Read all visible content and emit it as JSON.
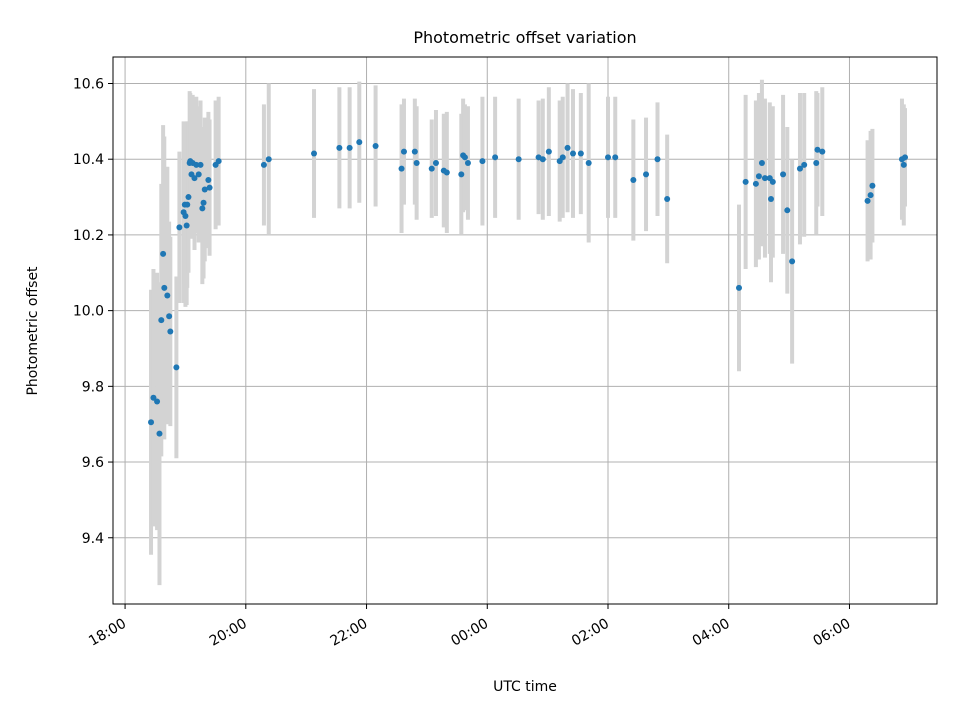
{
  "chart_data": {
    "type": "scatter",
    "title": "Photometric offset variation",
    "xlabel": "UTC time",
    "ylabel": "Photometric offset",
    "x_tick_labels": [
      "18:00",
      "20:00",
      "22:00",
      "00:00",
      "02:00",
      "04:00",
      "06:00"
    ],
    "x_tick_hours": [
      18,
      20,
      22,
      24,
      26,
      28,
      30
    ],
    "xlim_hours": [
      17.8,
      31.45
    ],
    "y_ticks": [
      9.4,
      9.6,
      9.8,
      10.0,
      10.2,
      10.4,
      10.6
    ],
    "y_tick_labels": [
      "9.4",
      "9.6",
      "9.8",
      "10.0",
      "10.2",
      "10.4",
      "10.6"
    ],
    "ylim": [
      9.225,
      10.67
    ],
    "grid": true,
    "error_bar_color": "#d3d3d3",
    "marker_color": "#1f77b4",
    "series": [
      {
        "values": [
          [
            18.43,
            9.705,
            0.35
          ],
          [
            18.47,
            9.77,
            0.34
          ],
          [
            18.53,
            9.76,
            0.34
          ],
          [
            18.57,
            9.675,
            0.4
          ],
          [
            18.6,
            9.975,
            0.36
          ],
          [
            18.65,
            10.06,
            0.4
          ],
          [
            18.63,
            10.15,
            0.34
          ],
          [
            18.7,
            10.04,
            0.34
          ],
          [
            18.73,
            9.985,
            0.25
          ],
          [
            18.75,
            9.945,
            0.25
          ],
          [
            18.85,
            9.85,
            0.24
          ],
          [
            18.9,
            10.22,
            0.2
          ],
          [
            18.97,
            10.26,
            0.24
          ],
          [
            18.99,
            10.28,
            0.21
          ],
          [
            19.0,
            10.25,
            0.24
          ],
          [
            19.02,
            10.225,
            0.21
          ],
          [
            19.03,
            10.28,
            0.22
          ],
          [
            19.05,
            10.3,
            0.2
          ],
          [
            19.07,
            10.39,
            0.19
          ],
          [
            19.08,
            10.395,
            0.18
          ],
          [
            19.1,
            10.36,
            0.17
          ],
          [
            19.12,
            10.39,
            0.18
          ],
          [
            19.15,
            10.35,
            0.19
          ],
          [
            19.18,
            10.385,
            0.18
          ],
          [
            19.22,
            10.36,
            0.18
          ],
          [
            19.25,
            10.385,
            0.17
          ],
          [
            19.28,
            10.27,
            0.2
          ],
          [
            19.32,
            10.32,
            0.19
          ],
          [
            19.3,
            10.285,
            0.2
          ],
          [
            19.38,
            10.345,
            0.18
          ],
          [
            19.4,
            10.325,
            0.18
          ],
          [
            19.5,
            10.385,
            0.17
          ],
          [
            19.55,
            10.395,
            0.17
          ],
          [
            20.3,
            10.385,
            0.16
          ],
          [
            20.38,
            10.4,
            0.2
          ],
          [
            21.13,
            10.415,
            0.17
          ],
          [
            21.55,
            10.43,
            0.16
          ],
          [
            21.72,
            10.43,
            0.16
          ],
          [
            21.88,
            10.445,
            0.16
          ],
          [
            22.15,
            10.435,
            0.16
          ],
          [
            22.58,
            10.375,
            0.17
          ],
          [
            22.62,
            10.42,
            0.14
          ],
          [
            22.8,
            10.42,
            0.14
          ],
          [
            22.83,
            10.39,
            0.15
          ],
          [
            23.08,
            10.375,
            0.13
          ],
          [
            23.15,
            10.39,
            0.14
          ],
          [
            23.28,
            10.37,
            0.15
          ],
          [
            23.33,
            10.365,
            0.16
          ],
          [
            23.57,
            10.36,
            0.16
          ],
          [
            23.6,
            10.41,
            0.15
          ],
          [
            23.63,
            10.405,
            0.14
          ],
          [
            23.68,
            10.39,
            0.15
          ],
          [
            23.92,
            10.395,
            0.17
          ],
          [
            24.13,
            10.405,
            0.16
          ],
          [
            24.52,
            10.4,
            0.16
          ],
          [
            24.85,
            10.405,
            0.15
          ],
          [
            24.92,
            10.4,
            0.16
          ],
          [
            25.02,
            10.42,
            0.17
          ],
          [
            25.2,
            10.395,
            0.16
          ],
          [
            25.25,
            10.405,
            0.16
          ],
          [
            25.33,
            10.43,
            0.17
          ],
          [
            25.42,
            10.415,
            0.17
          ],
          [
            25.55,
            10.415,
            0.16
          ],
          [
            25.68,
            10.39,
            0.21
          ],
          [
            26.0,
            10.405,
            0.16
          ],
          [
            26.12,
            10.405,
            0.16
          ],
          [
            26.42,
            10.345,
            0.16
          ],
          [
            26.63,
            10.36,
            0.15
          ],
          [
            26.82,
            10.4,
            0.15
          ],
          [
            26.98,
            10.295,
            0.17
          ],
          [
            28.17,
            10.06,
            0.22
          ],
          [
            28.28,
            10.34,
            0.23
          ],
          [
            28.45,
            10.335,
            0.22
          ],
          [
            28.5,
            10.355,
            0.22
          ],
          [
            28.55,
            10.39,
            0.22
          ],
          [
            28.6,
            10.35,
            0.21
          ],
          [
            28.68,
            10.35,
            0.2
          ],
          [
            28.7,
            10.295,
            0.22
          ],
          [
            28.73,
            10.34,
            0.2
          ],
          [
            28.9,
            10.36,
            0.21
          ],
          [
            28.97,
            10.265,
            0.22
          ],
          [
            29.05,
            10.13,
            0.27
          ],
          [
            29.18,
            10.375,
            0.2
          ],
          [
            29.25,
            10.385,
            0.19
          ],
          [
            29.45,
            10.39,
            0.19
          ],
          [
            29.47,
            10.425,
            0.15
          ],
          [
            29.55,
            10.42,
            0.17
          ],
          [
            30.3,
            10.29,
            0.16
          ],
          [
            30.35,
            10.305,
            0.17
          ],
          [
            30.38,
            10.33,
            0.15
          ],
          [
            30.87,
            10.4,
            0.16
          ],
          [
            30.9,
            10.385,
            0.16
          ],
          [
            30.92,
            10.405,
            0.13
          ]
        ]
      }
    ]
  }
}
